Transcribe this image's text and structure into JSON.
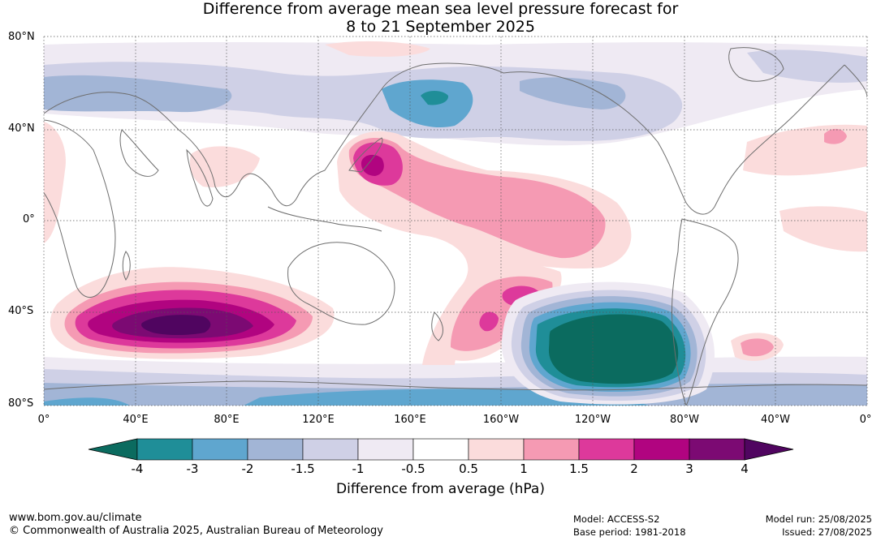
{
  "title": {
    "line1": "Difference from average mean sea level pressure forecast for",
    "line2": "8 to 21 September 2025"
  },
  "map": {
    "type": "anomaly_map",
    "latitude_labels": [
      "80°N",
      "40°N",
      "0°",
      "40°S",
      "80°S"
    ],
    "longitude_labels": [
      "0°",
      "40°E",
      "80°E",
      "120°E",
      "160°E",
      "160°W",
      "120°W",
      "80°W",
      "40°W",
      "0°"
    ],
    "gridlines": true,
    "ocean_color": "#ffffff",
    "coastline_color": "#6e6e6e",
    "notable_anomalies": [
      {
        "region": "southern Indian Ocean",
        "min_category": "4",
        "sign": "positive"
      },
      {
        "region": "southeast Pacific",
        "min_category": "-4",
        "sign": "negative"
      },
      {
        "region": "northwest Pacific",
        "min_category": "2",
        "sign": "positive"
      },
      {
        "region": "north Pacific",
        "min_category": "-3",
        "sign": "negative"
      },
      {
        "region": "central south Pacific",
        "min_category": "1.5",
        "sign": "positive"
      },
      {
        "region": "Southern Ocean",
        "min_category": "-1",
        "sign": "negative"
      }
    ]
  },
  "colorbar": {
    "ticks": [
      "-4",
      "-3",
      "-2",
      "-1.5",
      "-1",
      "-0.5",
      "0.5",
      "1",
      "1.5",
      "2",
      "3",
      "4"
    ],
    "colors": [
      "#0b6b5f",
      "#1f8e98",
      "#5fa6cf",
      "#a2b5d6",
      "#cfd0e6",
      "#efeaf3",
      "#ffffff",
      "#fbdcdc",
      "#f59ab3",
      "#dd399b",
      "#b10480",
      "#7c0a73",
      "#500560"
    ],
    "label": "Difference from average (hPa)"
  },
  "footer": {
    "website": "www.bom.gov.au/climate",
    "copyright": "© Commonwealth of Australia 2025, Australian Bureau of Meteorology",
    "model": "Model: ACCESS-S2",
    "base_period": "Base period: 1981-2018",
    "model_run": "Model run: 25/08/2025",
    "issued": "Issued: 27/08/2025"
  }
}
